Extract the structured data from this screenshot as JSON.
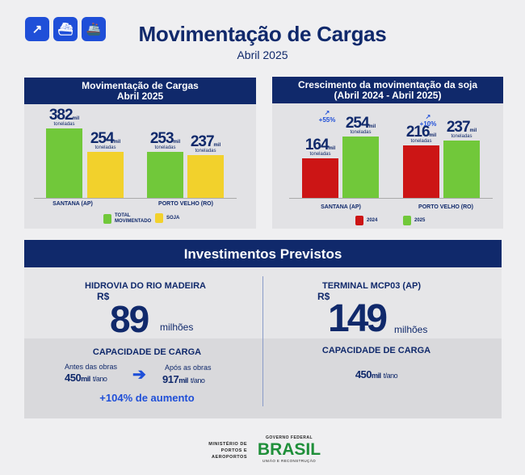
{
  "header": {
    "title": "Movimentação  de Cargas",
    "subtitle": "Abril 2025",
    "icons": [
      "arrow-up-right-icon",
      "ship-icon",
      "cargo-ship-icon"
    ]
  },
  "colors": {
    "navy": "#10296b",
    "blue": "#1f4fd8",
    "green": "#71c83a",
    "yellow": "#f2d12c",
    "red": "#cc1515"
  },
  "chart_data": [
    {
      "type": "bar",
      "title": "Movimentação de Cargas",
      "title2": "Abril 2025",
      "categories": [
        "SANTANA (AP)",
        "PORTO VELHO (RO)"
      ],
      "series": [
        {
          "name": "TOTAL MOVIMENTADO",
          "values": [
            382,
            253
          ],
          "color": "#71c83a"
        },
        {
          "name": "SOJA",
          "values": [
            254,
            237
          ],
          "color": "#f2d12c"
        }
      ],
      "unit": "mil",
      "unit_label": "toneladas",
      "legend": "bottom"
    },
    {
      "type": "bar",
      "title": "Crescimento da movimentação da soja",
      "title2": "(Abril 2024 - Abril 2025)",
      "categories": [
        "SANTANA (AP)",
        "PORTO VELHO (RO)"
      ],
      "series": [
        {
          "name": "2024",
          "values": [
            164,
            216
          ],
          "color": "#cc1515"
        },
        {
          "name": "2025",
          "values": [
            254,
            237
          ],
          "color": "#71c83a"
        }
      ],
      "growth": [
        "+55%",
        "+10%"
      ],
      "unit": "mil",
      "unit_label": "toneladas",
      "legend": "bottom"
    }
  ],
  "invest": {
    "title": "Investimentos Previstos",
    "left": {
      "name": "HIDROVIA DO RIO MADEIRA",
      "currency": "R$",
      "amount": "89",
      "scale": "milhões",
      "cap_title": "CAPACIDADE DE CARGA",
      "before_label": "Antes das obras",
      "before_value": "450",
      "after_label": "Após as obras",
      "after_value": "917",
      "unit_mil": "mil",
      "unit": "t/ano",
      "increase": "+104% de aumento"
    },
    "right": {
      "name": "TERMINAL MCP03 (AP)",
      "currency": "R$",
      "amount": "149",
      "scale": "milhões",
      "cap_title": "CAPACIDADE DE CARGA",
      "value": "450",
      "unit_mil": "mil",
      "unit": "t/ano"
    }
  },
  "footer": {
    "ministry": [
      "MINISTÉRIO DE",
      "PORTOS E",
      "AEROPORTOS"
    ],
    "gov": "GOVERNO FEDERAL",
    "brand": "BRASIL",
    "tagline": "UNIÃO E RECONSTRUÇÃO"
  }
}
